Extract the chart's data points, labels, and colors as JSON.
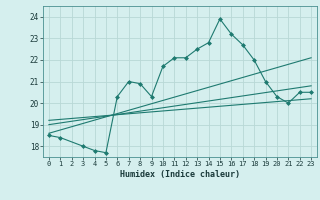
{
  "xlabel": "Humidex (Indice chaleur)",
  "bg_color": "#d5efee",
  "grid_color": "#b8d8d6",
  "line_color": "#1e7a70",
  "xlim": [
    -0.5,
    23.5
  ],
  "ylim": [
    17.5,
    24.5
  ],
  "xticks": [
    0,
    1,
    2,
    3,
    4,
    5,
    6,
    7,
    8,
    9,
    10,
    11,
    12,
    13,
    14,
    15,
    16,
    17,
    18,
    19,
    20,
    21,
    22,
    23
  ],
  "yticks": [
    18,
    19,
    20,
    21,
    22,
    23,
    24
  ],
  "series1_x": [
    0,
    1,
    3,
    4,
    5,
    6,
    7,
    8,
    9,
    10,
    11,
    12,
    13,
    14,
    15,
    16,
    17,
    18,
    19,
    20,
    21,
    22,
    23
  ],
  "series1_y": [
    18.5,
    18.4,
    18.0,
    17.8,
    17.7,
    20.3,
    21.0,
    20.9,
    20.3,
    21.7,
    22.1,
    22.1,
    22.5,
    22.8,
    23.9,
    23.2,
    22.7,
    22.0,
    21.0,
    20.3,
    20.0,
    20.5,
    20.5
  ],
  "series2_x": [
    0,
    23
  ],
  "series2_y": [
    18.6,
    22.1
  ],
  "series3_x": [
    0,
    23
  ],
  "series3_y": [
    19.0,
    20.8
  ],
  "series4_x": [
    0,
    23
  ],
  "series4_y": [
    19.2,
    20.2
  ]
}
